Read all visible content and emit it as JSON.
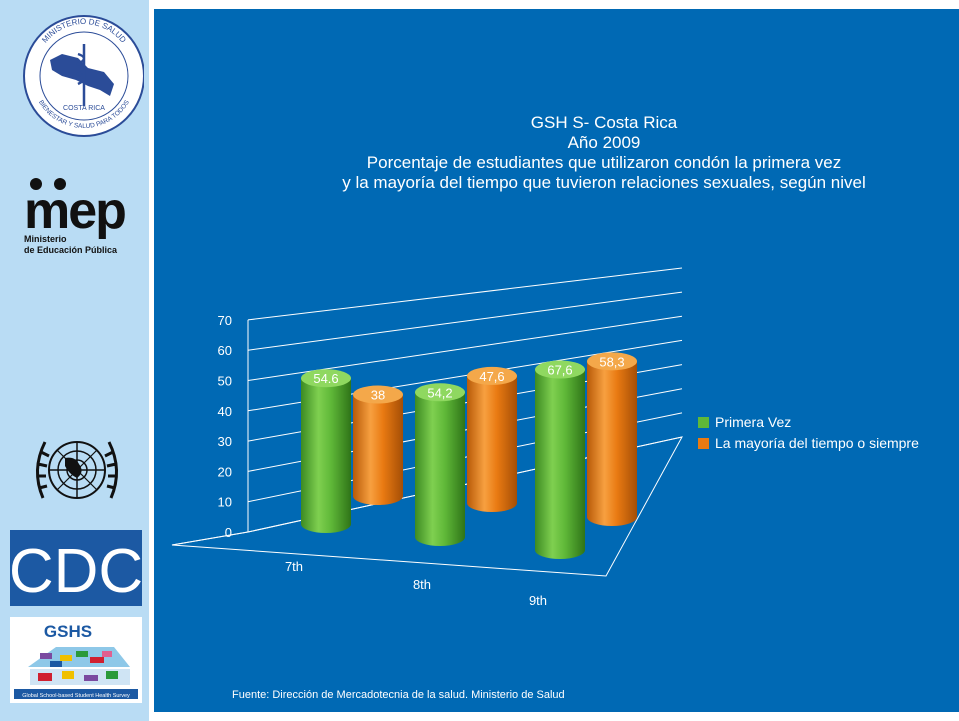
{
  "sidebar": {
    "ministerio_seal": {
      "text_top": "MINISTERIO DE SALUD",
      "text_mid": "COSTA RICA",
      "text_bottom": "BIENESTAR Y SALUD PARA TODOS"
    },
    "mep": {
      "wordmark": "mep",
      "line1": "Ministerio",
      "line2": "de Educación Pública"
    },
    "cdc": {
      "text": "CDC"
    },
    "gshs": {
      "text": "GSHS",
      "caption": "Global School-based Student Health Survey"
    }
  },
  "colors": {
    "background": "#0069b4",
    "sidebar": "#b9dcf4",
    "series_green": "#5fb838",
    "series_orange": "#e97a12"
  },
  "chart_data": {
    "type": "bar",
    "style": "3d-cylinder",
    "title_lines": [
      "GSH S- Costa Rica",
      "Año 2009",
      "Porcentaje de estudiantes que utilizaron condón la primera vez",
      "y la mayoría del tiempo que tuvieron relaciones sexuales, según nivel"
    ],
    "categories": [
      "7th",
      "8th",
      "9th"
    ],
    "series": [
      {
        "name": "Primera Vez",
        "values": [
          54.6,
          54.2,
          67.6
        ],
        "labels": [
          "54.6",
          "54,2",
          "67,6"
        ],
        "color": "#5fb838"
      },
      {
        "name": "La mayoría del tiempo o siempre",
        "values": [
          38,
          47.6,
          58.3
        ],
        "labels": [
          "38",
          "47,6",
          "58,3"
        ],
        "color": "#e97a12"
      }
    ],
    "ylim": [
      0,
      70
    ],
    "yticks": [
      "0",
      "10",
      "20",
      "30",
      "40",
      "50",
      "60",
      "70"
    ],
    "grid": true,
    "legend_position": "right",
    "source": "Fuente: Dirección de Mercadotecnia de la salud. Ministerio de Salud"
  }
}
